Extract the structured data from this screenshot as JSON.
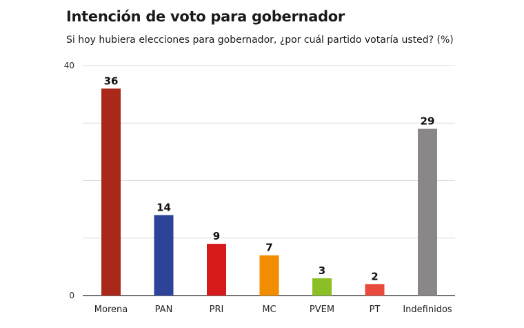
{
  "chart_data": {
    "type": "bar",
    "title": "Intención de voto para gobernador",
    "subtitle": "Si hoy hubiera elecciones para gobernador, ¿por cuál partido votaría usted? (%)",
    "categories": [
      "Morena",
      "PAN",
      "PRI",
      "MC",
      "PVEM",
      "PT",
      "Indefinidos"
    ],
    "values": [
      36,
      14,
      9,
      7,
      3,
      2,
      29
    ],
    "colors": [
      "#a9281a",
      "#2c4397",
      "#d41a1a",
      "#f28c00",
      "#8cbf26",
      "#e84a3c",
      "#8a8788"
    ],
    "ylim": [
      0,
      40
    ],
    "yticks": [
      0,
      40
    ],
    "gridlines": [
      0,
      10,
      20,
      30,
      40
    ],
    "grid": true,
    "legend": "none"
  }
}
